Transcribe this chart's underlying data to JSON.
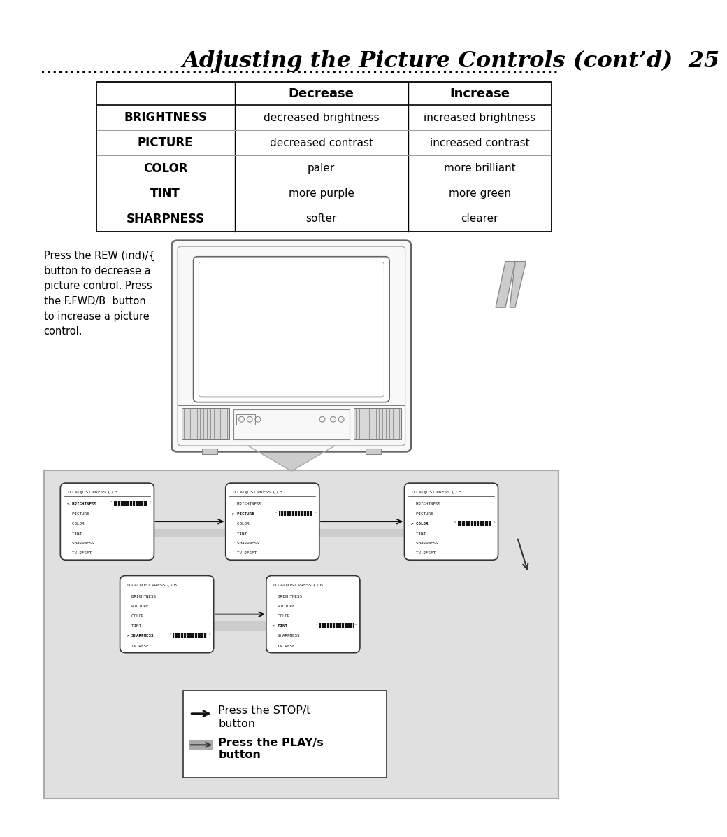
{
  "title": "Adjusting the Picture Controls (cont’d)  25",
  "bg_color": "#ffffff",
  "table_headers": [
    "",
    "Decrease",
    "Increase"
  ],
  "table_rows": [
    [
      "BRIGHTNESS",
      "decreased brightness",
      "increased brightness"
    ],
    [
      "PICTURE",
      "decreased contrast",
      "increased contrast"
    ],
    [
      "COLOR",
      "paler",
      "more brilliant"
    ],
    [
      "TINT",
      "more purple",
      "more green"
    ],
    [
      "SHARPNESS",
      "softer",
      "clearer"
    ]
  ],
  "sidebar_text": "Press the REW (ind)/{\nbutton to decrease a\npicture control. Press\nthe F.FWD/B  button\nto increase a picture\ncontrol.",
  "menu_items": [
    "BRIGHTNESS",
    "PICTURE",
    "COLOR",
    "TINT",
    "SHARPNESS",
    "TV RESET"
  ],
  "bottom_label1": "Press the STOP/t",
  "bottom_label1b": "button",
  "bottom_label2": "Press the PLAY/s",
  "bottom_label2b": "button",
  "adjust_label": "TO ADJUST PRESS { / B",
  "panel_bg": "#e0e0e0",
  "panel_border": "#aaaaaa",
  "tv_color": "#cccccc",
  "arrow_gray": "#cccccc",
  "box_selections": [
    0,
    1,
    2,
    4,
    3
  ]
}
